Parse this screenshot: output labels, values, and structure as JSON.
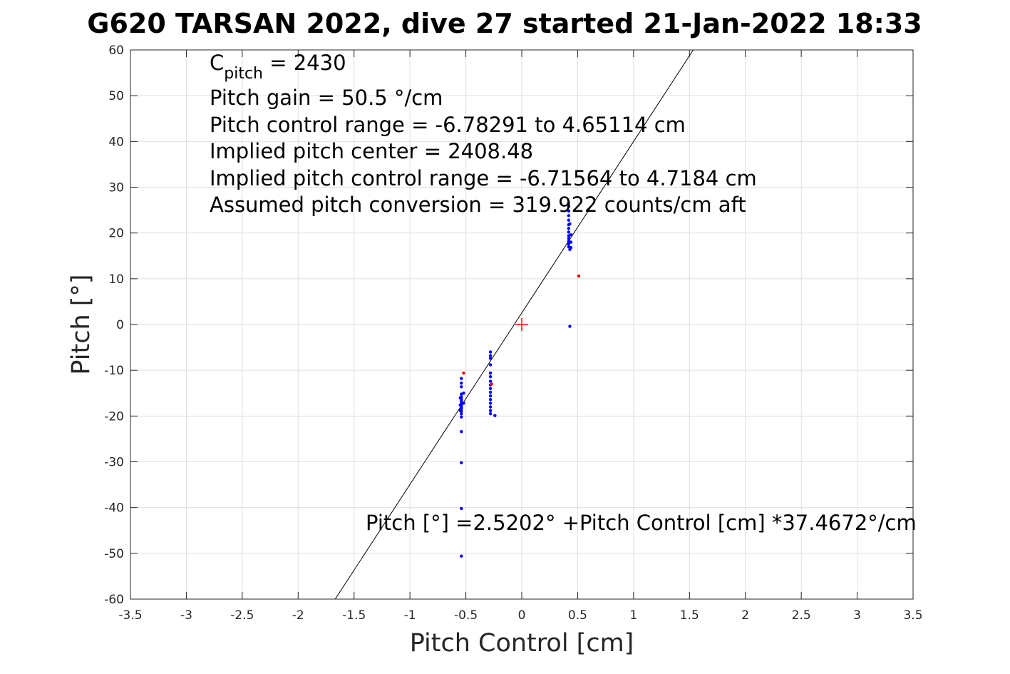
{
  "chart_data": {
    "type": "scatter",
    "title": "G620 TARSAN 2022, dive 27 started 21-Jan-2022 18:33",
    "xlabel": "Pitch Control [cm]",
    "ylabel": "Pitch [°]",
    "xlim": [
      -3.5,
      3.5
    ],
    "ylim": [
      -60,
      60
    ],
    "grid": true,
    "xticks": [
      -3.5,
      -3,
      -2.5,
      -2,
      -1.5,
      -1,
      -0.5,
      0,
      0.5,
      1,
      1.5,
      2,
      2.5,
      3,
      3.5
    ],
    "xtick_labels": [
      "-3.5",
      "-3",
      "-2.5",
      "-2",
      "-1.5",
      "-1",
      "-0.5",
      "0",
      "0.5",
      "1",
      "1.5",
      "2",
      "2.5",
      "3",
      "3.5"
    ],
    "yticks": [
      -60,
      -50,
      -40,
      -30,
      -20,
      -10,
      0,
      10,
      20,
      30,
      40,
      50,
      60
    ],
    "ytick_labels": [
      "-60",
      "-50",
      "-40",
      "-30",
      "-20",
      "-10",
      "0",
      "10",
      "20",
      "30",
      "40",
      "50",
      "60"
    ],
    "annotations": {
      "c_pitch_main": "C",
      "c_pitch_sub": "pitch",
      "c_pitch_value": " = 2430",
      "lines": [
        "Pitch gain = 50.5 °/cm",
        "Pitch control range = -6.78291 to 4.65114 cm",
        "Implied pitch center = 2408.48",
        "Implied pitch control range = -6.71564 to 4.7184 cm",
        "Assumed pitch conversion = 319.922 counts/cm aft"
      ],
      "fit_equation": "Pitch [°] =2.5202° +Pitch Control [cm] *37.4672°/cm"
    },
    "fit_line": {
      "intercept": 2.5202,
      "slope": 37.4672,
      "color": "#000000"
    },
    "center_marker": {
      "x": 0,
      "y": 0,
      "color": "#ff0000",
      "marker": "plus"
    },
    "series": [
      {
        "color": "#0000ff",
        "points": [
          [
            -0.54,
            -11.8
          ],
          [
            -0.54,
            -12.8
          ],
          [
            -0.54,
            -13.6
          ],
          [
            -0.54,
            -15.2
          ],
          [
            -0.54,
            -15.8
          ],
          [
            -0.54,
            -16.2
          ],
          [
            -0.54,
            -16.6
          ],
          [
            -0.54,
            -17.0
          ],
          [
            -0.54,
            -17.4
          ],
          [
            -0.54,
            -17.8
          ],
          [
            -0.54,
            -18.2
          ],
          [
            -0.54,
            -18.6
          ],
          [
            -0.54,
            -19.0
          ],
          [
            -0.54,
            -19.5
          ],
          [
            -0.54,
            -20.2
          ],
          [
            -0.55,
            -16.0
          ],
          [
            -0.55,
            -17.6
          ],
          [
            -0.55,
            -18.8
          ],
          [
            -0.52,
            -15.0
          ],
          [
            -0.52,
            -17.2
          ],
          [
            -0.54,
            -23.4
          ],
          [
            -0.54,
            -30.2
          ],
          [
            -0.54,
            -40.2
          ],
          [
            -0.54,
            -50.6
          ],
          [
            -0.28,
            -6.0
          ],
          [
            -0.28,
            -6.8
          ],
          [
            -0.28,
            -7.4
          ],
          [
            -0.28,
            -8.8
          ],
          [
            -0.28,
            -10.6
          ],
          [
            -0.28,
            -11.4
          ],
          [
            -0.28,
            -12.4
          ],
          [
            -0.28,
            -13.2
          ],
          [
            -0.28,
            -14.0
          ],
          [
            -0.28,
            -14.8
          ],
          [
            -0.28,
            -15.6
          ],
          [
            -0.28,
            -16.4
          ],
          [
            -0.28,
            -17.2
          ],
          [
            -0.28,
            -18.0
          ],
          [
            -0.28,
            -18.8
          ],
          [
            -0.28,
            -19.5
          ],
          [
            -0.24,
            -19.9
          ],
          [
            0.42,
            25.8
          ],
          [
            0.42,
            24.8
          ],
          [
            0.42,
            23.8
          ],
          [
            0.42,
            22.8
          ],
          [
            0.42,
            21.8
          ],
          [
            0.42,
            21.0
          ],
          [
            0.42,
            20.2
          ],
          [
            0.42,
            19.4
          ],
          [
            0.42,
            18.8
          ],
          [
            0.42,
            18.2
          ],
          [
            0.42,
            17.6
          ],
          [
            0.42,
            17.0
          ],
          [
            0.43,
            16.4
          ],
          [
            0.44,
            19.6
          ],
          [
            0.44,
            18.0
          ],
          [
            0.44,
            16.8
          ],
          [
            0.43,
            22.0
          ],
          [
            0.43,
            -0.4
          ]
        ]
      },
      {
        "color": "#ff0000",
        "points": [
          [
            -0.52,
            -10.6
          ],
          [
            -0.27,
            -13.0
          ],
          [
            0.51,
            10.6
          ]
        ]
      }
    ]
  }
}
